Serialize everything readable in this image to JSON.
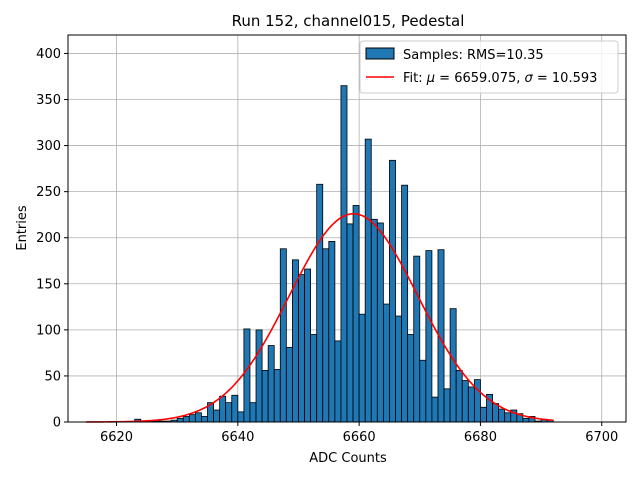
{
  "chart_data": {
    "type": "bar",
    "title": "Run 152, channel015, Pedestal",
    "xlabel": "ADC Counts",
    "ylabel": "Entries",
    "xlim": [
      6612,
      6704
    ],
    "ylim": [
      0,
      420
    ],
    "xticks": [
      6620,
      6640,
      6660,
      6680,
      6700
    ],
    "yticks": [
      0,
      50,
      100,
      150,
      200,
      250,
      300,
      350,
      400
    ],
    "grid": true,
    "legend_position": "top-right",
    "bin_width": 1,
    "histogram": {
      "name": "Samples: RMS=10.35",
      "color": "#1f77b4",
      "edge_color": "#000000",
      "bin_starts": [
        6623,
        6624,
        6625,
        6626,
        6627,
        6628,
        6629,
        6630,
        6631,
        6632,
        6633,
        6634,
        6635,
        6636,
        6637,
        6638,
        6639,
        6640,
        6641,
        6642,
        6643,
        6644,
        6645,
        6646,
        6647,
        6648,
        6649,
        6650,
        6651,
        6652,
        6653,
        6654,
        6655,
        6656,
        6657,
        6658,
        6659,
        6660,
        6661,
        6662,
        6663,
        6664,
        6665,
        6666,
        6667,
        6668,
        6669,
        6670,
        6671,
        6672,
        6673,
        6674,
        6675,
        6676,
        6677,
        6678,
        6679,
        6680,
        6681,
        6682,
        6683,
        6684,
        6685,
        6686,
        6687,
        6688,
        6689,
        6690,
        6691
      ],
      "counts": [
        3,
        1,
        1,
        1,
        1,
        1,
        2,
        4,
        6,
        8,
        10,
        6,
        21,
        13,
        28,
        21,
        29,
        11,
        101,
        21,
        100,
        56,
        83,
        57,
        188,
        81,
        176,
        160,
        166,
        95,
        258,
        188,
        196,
        88,
        365,
        215,
        235,
        117,
        307,
        220,
        216,
        128,
        284,
        115,
        257,
        95,
        180,
        67,
        186,
        27,
        187,
        36,
        123,
        56,
        45,
        38,
        46,
        16,
        30,
        20,
        14,
        10,
        13,
        9,
        4,
        6,
        1,
        3,
        2
      ]
    },
    "fit": {
      "name": "Fit: μ = 6659.075, σ = 10.593",
      "color": "#ff0000",
      "mu": 6659.075,
      "sigma": 10.593,
      "amplitude": 226,
      "x_range": [
        6615,
        6692
      ]
    }
  },
  "text": {
    "title": "Run 152, channel015, Pedestal",
    "xlabel": "ADC Counts",
    "ylabel": "Entries",
    "legend_hist": "Samples: RMS=10.35",
    "legend_fit_prefix": "Fit: ",
    "legend_fit_mu": "μ",
    "legend_fit_mid": " = 6659.075, ",
    "legend_fit_sigma": "σ",
    "legend_fit_suffix": " = 10.593"
  }
}
